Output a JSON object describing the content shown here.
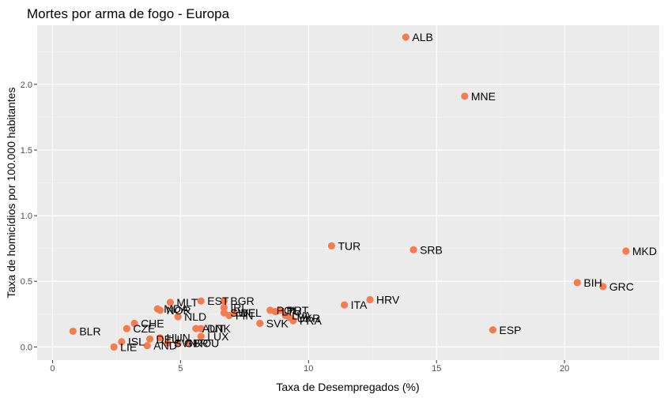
{
  "chart_data": {
    "type": "scatter",
    "title": "Mortes por arma de fogo - Europa",
    "xlabel": "Taxa de Desempregados (%)",
    "ylabel": "Taxa de homicídios por 100.000 habitantes",
    "xlim": [
      -0.6,
      23.7
    ],
    "ylim": [
      -0.1,
      2.45
    ],
    "x_ticks": [
      0,
      5,
      10,
      15,
      20
    ],
    "x_tick_labels": [
      "0",
      "5",
      "10",
      "15",
      "20"
    ],
    "y_ticks": [
      0,
      0.5,
      1.0,
      1.5,
      2.0
    ],
    "y_tick_labels": [
      "0.0",
      "0.5",
      "1.0",
      "1.5",
      "2.0"
    ],
    "grid": true,
    "background": "#ebebeb",
    "point_color": "#f47c50",
    "points": [
      {
        "label": "ALB",
        "x": 13.8,
        "y": 2.36
      },
      {
        "label": "MNE",
        "x": 16.1,
        "y": 1.91
      },
      {
        "label": "TUR",
        "x": 10.9,
        "y": 0.77
      },
      {
        "label": "SRB",
        "x": 14.1,
        "y": 0.74
      },
      {
        "label": "MKD",
        "x": 22.4,
        "y": 0.73
      },
      {
        "label": "BIH",
        "x": 20.5,
        "y": 0.49
      },
      {
        "label": "GRC",
        "x": 21.5,
        "y": 0.46
      },
      {
        "label": "HRV",
        "x": 12.4,
        "y": 0.36
      },
      {
        "label": "ITA",
        "x": 11.4,
        "y": 0.32
      },
      {
        "label": "ESP",
        "x": 17.2,
        "y": 0.13
      },
      {
        "label": "BLR",
        "x": 0.8,
        "y": 0.12
      },
      {
        "label": "CHE",
        "x": 3.2,
        "y": 0.18
      },
      {
        "label": "CZE",
        "x": 2.9,
        "y": 0.14
      },
      {
        "label": "ISL",
        "x": 2.7,
        "y": 0.04
      },
      {
        "label": "LIE",
        "x": 2.4,
        "y": 0.0
      },
      {
        "label": "AND",
        "x": 3.7,
        "y": 0.01
      },
      {
        "label": "DEU",
        "x": 3.8,
        "y": 0.06
      },
      {
        "label": "HUN",
        "x": 4.2,
        "y": 0.07
      },
      {
        "label": "MLT",
        "x": 4.6,
        "y": 0.34
      },
      {
        "label": "MDA",
        "x": 4.1,
        "y": 0.29
      },
      {
        "label": "NOR",
        "x": 4.2,
        "y": 0.28
      },
      {
        "label": "NLD",
        "x": 4.9,
        "y": 0.23
      },
      {
        "label": "SVN",
        "x": 4.5,
        "y": 0.03
      },
      {
        "label": "GBR",
        "x": 4.9,
        "y": 0.03
      },
      {
        "label": "ROU",
        "x": 5.3,
        "y": 0.03
      },
      {
        "label": "AUT",
        "x": 5.6,
        "y": 0.14
      },
      {
        "label": "DNK",
        "x": 5.8,
        "y": 0.14
      },
      {
        "label": "LUX",
        "x": 5.8,
        "y": 0.08
      },
      {
        "label": "EST",
        "x": 5.8,
        "y": 0.35
      },
      {
        "label": "BGR",
        "x": 6.7,
        "y": 0.35
      },
      {
        "label": "IRL",
        "x": 6.7,
        "y": 0.3
      },
      {
        "label": "SWE",
        "x": 6.7,
        "y": 0.26
      },
      {
        "label": "BEL",
        "x": 7.1,
        "y": 0.26
      },
      {
        "label": "FIN",
        "x": 6.9,
        "y": 0.24
      },
      {
        "label": "SVK",
        "x": 8.1,
        "y": 0.18
      },
      {
        "label": "POL",
        "x": 8.5,
        "y": 0.28
      },
      {
        "label": "PRT",
        "x": 8.9,
        "y": 0.28
      },
      {
        "label": "LTU",
        "x": 8.7,
        "y": 0.27
      },
      {
        "label": "LVA",
        "x": 9.1,
        "y": 0.24
      },
      {
        "label": "UKR",
        "x": 9.3,
        "y": 0.22
      },
      {
        "label": "FRA",
        "x": 9.4,
        "y": 0.2
      }
    ]
  }
}
